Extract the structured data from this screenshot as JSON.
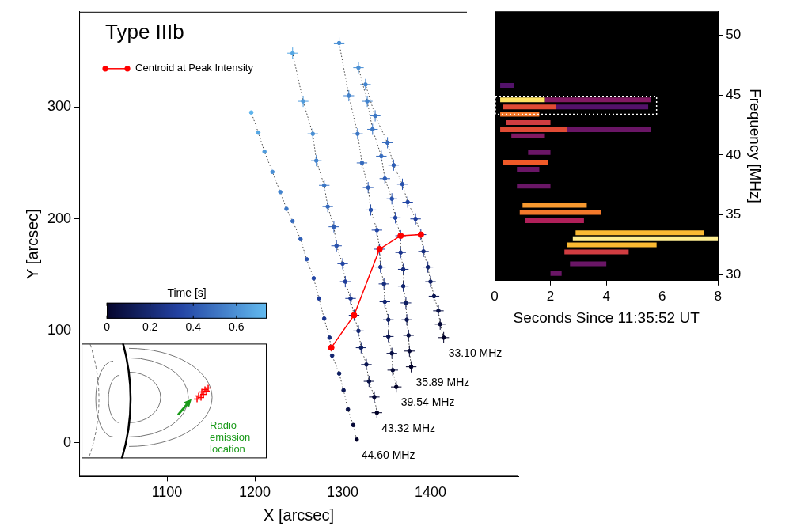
{
  "chart_data": [
    {
      "type": "scatter",
      "title": "Type IIIb",
      "x_label": "X [arcsec]",
      "y_label": "Y [arcsec]",
      "xlim": [
        1000,
        1500
      ],
      "xticks": [
        1100,
        1200,
        1300,
        1400
      ],
      "ylim": [
        -30,
        385
      ],
      "yticks": [
        0,
        100,
        200,
        300
      ],
      "grid": false,
      "legend": "upper left",
      "series": [
        {
          "name": "44.60 MHz",
          "marker": "circle",
          "line_style": "dotted",
          "x": [
            1316,
            1312,
            1306,
            1301,
            1296,
            1288,
            1285,
            1279,
            1273,
            1267,
            1259,
            1252,
            1243,
            1236,
            1229,
            1220,
            1211,
            1204,
            1196
          ],
          "y": [
            3,
            16,
            30,
            47,
            62,
            78,
            94,
            111,
            129,
            147,
            164,
            182,
            198,
            209,
            224,
            242,
            260,
            277,
            295
          ],
          "time": [
            0,
            0.04,
            0.08,
            0.12,
            0.16,
            0.2,
            0.24,
            0.28,
            0.32,
            0.36,
            0.4,
            0.44,
            0.48,
            0.52,
            0.56,
            0.6,
            0.64,
            0.68,
            0.72
          ]
        },
        {
          "name": "43.32 MHz",
          "marker": "circle",
          "line_style": "dotted",
          "xerr": 6,
          "yerr": 5,
          "x": [
            1339,
            1336,
            1330,
            1327,
            1321,
            1318,
            1313,
            1309,
            1303,
            1300,
            1293,
            1290,
            1283,
            1279,
            1270,
            1266,
            1255,
            1243
          ],
          "y": [
            27,
            41,
            55,
            70,
            85,
            100,
            114,
            129,
            144,
            160,
            176,
            193,
            211,
            230,
            252,
            276,
            305,
            348
          ],
          "time": [
            0,
            0.04,
            0.08,
            0.12,
            0.16,
            0.2,
            0.24,
            0.28,
            0.32,
            0.36,
            0.4,
            0.44,
            0.48,
            0.52,
            0.56,
            0.6,
            0.64,
            0.68
          ]
        },
        {
          "name": "39.54 MHz",
          "marker": "circle",
          "line_style": "dotted",
          "xerr": 6,
          "yerr": 5,
          "x": [
            1361,
            1357,
            1356,
            1352,
            1352,
            1348,
            1347,
            1343,
            1342,
            1339,
            1332,
            1329,
            1322,
            1317,
            1307,
            1296
          ],
          "y": [
            50,
            65,
            80,
            95,
            110,
            126,
            142,
            157,
            173,
            190,
            208,
            228,
            250,
            276,
            310,
            357
          ],
          "time": [
            0,
            0.04,
            0.08,
            0.12,
            0.16,
            0.2,
            0.24,
            0.28,
            0.32,
            0.36,
            0.4,
            0.44,
            0.48,
            0.52,
            0.56,
            0.6
          ]
        },
        {
          "name": "35.89 MHz",
          "marker": "circle",
          "line_style": "dotted",
          "xerr": 6,
          "yerr": 5,
          "x": [
            1378,
            1376,
            1375,
            1373,
            1372,
            1369,
            1369,
            1366,
            1366,
            1360,
            1356,
            1348,
            1344,
            1334,
            1328,
            1318
          ],
          "y": [
            68,
            82,
            96,
            110,
            125,
            140,
            155,
            170,
            185,
            201,
            218,
            236,
            256,
            280,
            305,
            335
          ],
          "time": [
            0,
            0.04,
            0.08,
            0.12,
            0.16,
            0.2,
            0.24,
            0.28,
            0.32,
            0.36,
            0.4,
            0.44,
            0.48,
            0.52,
            0.56,
            0.6
          ]
        },
        {
          "name": "33.10 MHz",
          "marker": "circle",
          "line_style": "dotted",
          "xerr": 6,
          "yerr": 5,
          "x": [
            1415,
            1411,
            1409,
            1404,
            1400,
            1397,
            1392,
            1389,
            1383,
            1374,
            1368,
            1358,
            1351,
            1337,
            1326
          ],
          "y": [
            94,
            106,
            118,
            131,
            144,
            157,
            171,
            186,
            200,
            215,
            231,
            248,
            268,
            292,
            320
          ],
          "time": [
            0,
            0.04,
            0.08,
            0.12,
            0.16,
            0.2,
            0.24,
            0.28,
            0.32,
            0.36,
            0.4,
            0.44,
            0.48,
            0.52,
            0.56
          ]
        },
        {
          "name": "Centroid at Peak Intensity",
          "color": "#ff0000",
          "marker": "circle",
          "line_style": "solid",
          "x": [
            1287,
            1313,
            1342,
            1366,
            1389
          ],
          "y": [
            85,
            114,
            173,
            185,
            186
          ]
        }
      ],
      "colorbar": {
        "label": "Time [s]",
        "range": [
          0,
          0.74
        ],
        "ticks": [
          0,
          0.2,
          0.4,
          0.6
        ]
      },
      "inset": {
        "text": [
          "Radio",
          "emission",
          "location"
        ]
      }
    },
    {
      "type": "spectrogram",
      "x_label": "Seconds Since 11:35:52 UT",
      "y_label": "Frequency [MHz]",
      "xlim": [
        0,
        8
      ],
      "xticks": [
        0,
        2,
        4,
        6,
        8
      ],
      "ylim": [
        29.5,
        52
      ],
      "yticks": [
        30,
        35,
        40,
        45,
        50
      ],
      "grid": false,
      "bursts": [
        {
          "freq": 45.8,
          "t": [
            0.2,
            0.7
          ],
          "intensity": 0.25
        },
        {
          "freq": 44.6,
          "t": [
            1.8,
            5.6
          ],
          "intensity": 0.35
        },
        {
          "freq": 44.6,
          "t": [
            0.2,
            1.8
          ],
          "intensity": 0.9
        },
        {
          "freq": 44.0,
          "t": [
            2.2,
            5.5
          ],
          "intensity": 0.25
        },
        {
          "freq": 44.0,
          "t": [
            0.3,
            2.2
          ],
          "intensity": 0.6
        },
        {
          "freq": 43.4,
          "t": [
            0.2,
            1.6
          ],
          "intensity": 0.7
        },
        {
          "freq": 42.7,
          "t": [
            0.4,
            2.0
          ],
          "intensity": 0.55
        },
        {
          "freq": 42.1,
          "t": [
            2.6,
            5.6
          ],
          "intensity": 0.3
        },
        {
          "freq": 42.1,
          "t": [
            0.2,
            2.6
          ],
          "intensity": 0.6
        },
        {
          "freq": 41.6,
          "t": [
            0.6,
            1.8
          ],
          "intensity": 0.35
        },
        {
          "freq": 40.2,
          "t": [
            1.2,
            2.0
          ],
          "intensity": 0.3
        },
        {
          "freq": 39.4,
          "t": [
            0.3,
            1.9
          ],
          "intensity": 0.65
        },
        {
          "freq": 38.8,
          "t": [
            0.8,
            1.6
          ],
          "intensity": 0.3
        },
        {
          "freq": 37.4,
          "t": [
            0.8,
            2.0
          ],
          "intensity": 0.3
        },
        {
          "freq": 35.8,
          "t": [
            1.0,
            3.3
          ],
          "intensity": 0.75
        },
        {
          "freq": 35.2,
          "t": [
            0.9,
            3.8
          ],
          "intensity": 0.7
        },
        {
          "freq": 34.5,
          "t": [
            1.1,
            3.2
          ],
          "intensity": 0.45
        },
        {
          "freq": 33.5,
          "t": [
            2.9,
            7.5
          ],
          "intensity": 0.8
        },
        {
          "freq": 33.0,
          "t": [
            2.8,
            8.0
          ],
          "intensity": 0.95
        },
        {
          "freq": 32.5,
          "t": [
            2.6,
            5.8
          ],
          "intensity": 0.8
        },
        {
          "freq": 31.9,
          "t": [
            2.5,
            4.8
          ],
          "intensity": 0.55
        },
        {
          "freq": 30.9,
          "t": [
            2.7,
            4.0
          ],
          "intensity": 0.3
        },
        {
          "freq": 30.1,
          "t": [
            2.0,
            2.4
          ],
          "intensity": 0.3
        }
      ],
      "highlight": {
        "t": [
          0,
          5.8
        ],
        "freq": [
          43.4,
          44.9
        ]
      }
    }
  ]
}
